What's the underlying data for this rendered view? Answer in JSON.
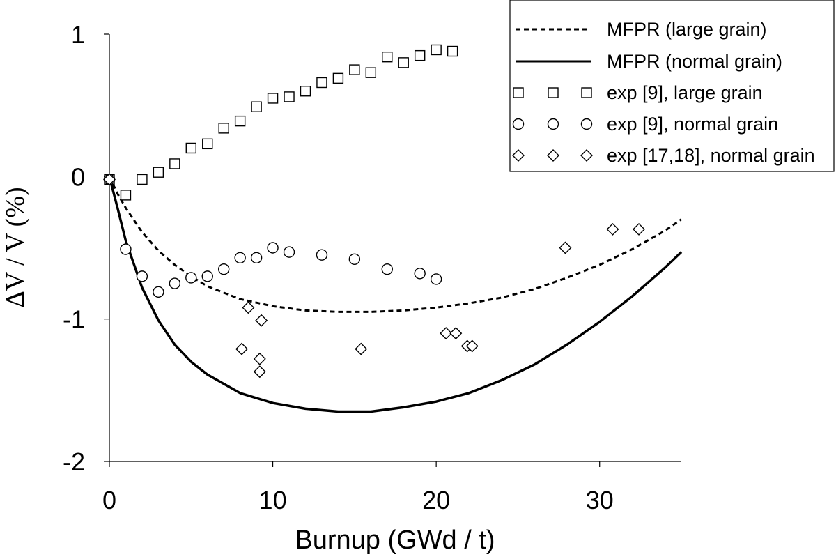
{
  "chart_data": {
    "type": "scatter",
    "xlabel": "Burnup (GWd / t)",
    "ylabel": "ΔV / V (%)",
    "xlim": [
      0,
      35
    ],
    "ylim": [
      -2,
      1
    ],
    "x_ticks": [
      {
        "value": 0,
        "label": "0"
      },
      {
        "value": 10,
        "label": "10"
      },
      {
        "value": 20,
        "label": "20"
      },
      {
        "value": 30,
        "label": "30"
      }
    ],
    "y_ticks": [
      {
        "value": 1,
        "label": "1"
      },
      {
        "value": 0,
        "label": "0"
      },
      {
        "value": -1,
        "label": "-1"
      },
      {
        "value": -2,
        "label": "-2"
      }
    ],
    "legend_position": "top-right",
    "series": [
      {
        "name": "MFPR (large grain)",
        "kind": "line",
        "style": "dashed",
        "points": [
          [
            0,
            0
          ],
          [
            0.5,
            -0.12
          ],
          [
            1,
            -0.22
          ],
          [
            2,
            -0.39
          ],
          [
            3,
            -0.52
          ],
          [
            4,
            -0.62
          ],
          [
            5,
            -0.7
          ],
          [
            6,
            -0.77
          ],
          [
            8,
            -0.86
          ],
          [
            10,
            -0.91
          ],
          [
            12,
            -0.94
          ],
          [
            14,
            -0.95
          ],
          [
            15,
            -0.95
          ],
          [
            16,
            -0.95
          ],
          [
            18,
            -0.94
          ],
          [
            20,
            -0.92
          ],
          [
            22,
            -0.89
          ],
          [
            24,
            -0.85
          ],
          [
            26,
            -0.79
          ],
          [
            28,
            -0.71
          ],
          [
            30,
            -0.62
          ],
          [
            32,
            -0.51
          ],
          [
            34,
            -0.38
          ],
          [
            35,
            -0.3
          ]
        ]
      },
      {
        "name": "MFPR (normal grain)",
        "kind": "line",
        "style": "solid",
        "points": [
          [
            0,
            0
          ],
          [
            0.5,
            -0.22
          ],
          [
            1,
            -0.45
          ],
          [
            2,
            -0.78
          ],
          [
            3,
            -1.01
          ],
          [
            4,
            -1.18
          ],
          [
            5,
            -1.3
          ],
          [
            6,
            -1.39
          ],
          [
            8,
            -1.52
          ],
          [
            10,
            -1.59
          ],
          [
            12,
            -1.63
          ],
          [
            14,
            -1.65
          ],
          [
            15,
            -1.65
          ],
          [
            16,
            -1.65
          ],
          [
            18,
            -1.62
          ],
          [
            20,
            -1.58
          ],
          [
            22,
            -1.52
          ],
          [
            24,
            -1.43
          ],
          [
            26,
            -1.32
          ],
          [
            28,
            -1.18
          ],
          [
            30,
            -1.02
          ],
          [
            32,
            -0.84
          ],
          [
            34,
            -0.64
          ],
          [
            35,
            -0.53
          ]
        ]
      },
      {
        "name": "exp [9], large grain",
        "kind": "marker",
        "marker": "square",
        "points": [
          [
            0,
            -0.02
          ],
          [
            1,
            -0.13
          ],
          [
            2,
            -0.02
          ],
          [
            3,
            0.03
          ],
          [
            4,
            0.09
          ],
          [
            5,
            0.2
          ],
          [
            6,
            0.23
          ],
          [
            7,
            0.34
          ],
          [
            8,
            0.39
          ],
          [
            9,
            0.49
          ],
          [
            10,
            0.55
          ],
          [
            11,
            0.56
          ],
          [
            12,
            0.6
          ],
          [
            13,
            0.66
          ],
          [
            14,
            0.69
          ],
          [
            15,
            0.75
          ],
          [
            16,
            0.73
          ],
          [
            17,
            0.84
          ],
          [
            18,
            0.8
          ],
          [
            19,
            0.85
          ],
          [
            20,
            0.89
          ],
          [
            21,
            0.88
          ]
        ]
      },
      {
        "name": "exp [9], normal grain",
        "kind": "marker",
        "marker": "circle",
        "points": [
          [
            0,
            -0.02
          ],
          [
            1,
            -0.51
          ],
          [
            2,
            -0.7
          ],
          [
            3,
            -0.81
          ],
          [
            4,
            -0.75
          ],
          [
            5,
            -0.71
          ],
          [
            6,
            -0.7
          ],
          [
            7,
            -0.65
          ],
          [
            8,
            -0.57
          ],
          [
            9,
            -0.57
          ],
          [
            10,
            -0.5
          ],
          [
            11,
            -0.53
          ],
          [
            13,
            -0.55
          ],
          [
            15,
            -0.58
          ],
          [
            17,
            -0.65
          ],
          [
            19,
            -0.68
          ],
          [
            20,
            -0.72
          ]
        ]
      },
      {
        "name": "exp [17,18], normal grain",
        "kind": "marker",
        "marker": "diamond",
        "points": [
          [
            0,
            -0.02
          ],
          [
            8.1,
            -1.21
          ],
          [
            8.5,
            -0.92
          ],
          [
            9.2,
            -1.28
          ],
          [
            9.2,
            -1.37
          ],
          [
            9.3,
            -1.01
          ],
          [
            15.4,
            -1.21
          ],
          [
            20.6,
            -1.1
          ],
          [
            21.2,
            -1.1
          ],
          [
            21.9,
            -1.19
          ],
          [
            22.2,
            -1.19
          ],
          [
            27.9,
            -0.5
          ],
          [
            30.8,
            -0.37
          ],
          [
            32.4,
            -0.37
          ]
        ]
      }
    ]
  }
}
